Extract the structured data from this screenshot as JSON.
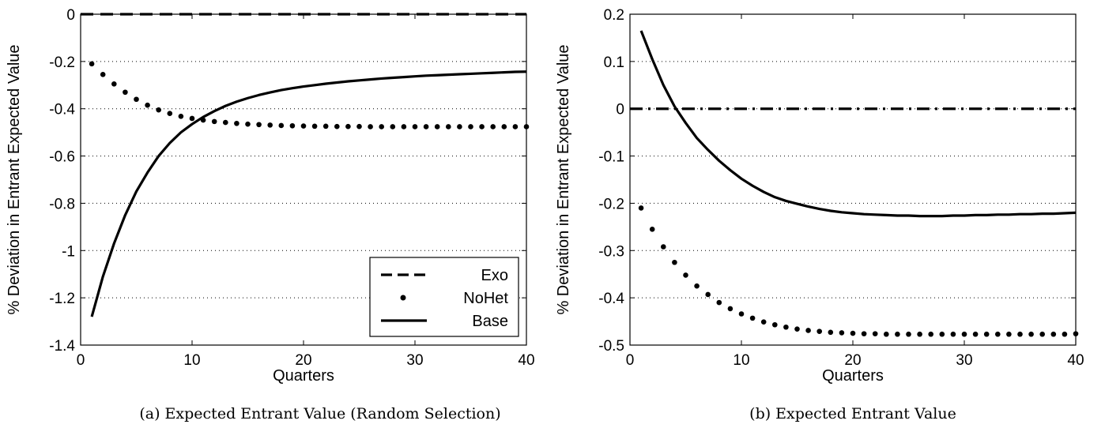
{
  "chart_data": [
    {
      "type": "line",
      "caption": "(a) Expected Entrant Value (Random Selection)",
      "xlabel": "Quarters",
      "ylabel": "% Deviation in Entrant Expected Value",
      "xlim": [
        0,
        40
      ],
      "ylim": [
        -1.4,
        0
      ],
      "xticks": [
        "0",
        "10",
        "20",
        "30",
        "40"
      ],
      "yticks": [
        "0",
        "-0.2",
        "-0.4",
        "-0.6",
        "-0.8",
        "-1",
        "-1.2",
        "-1.4"
      ],
      "grid": "dotted horizontal",
      "legend": {
        "position": "bottom-right",
        "entries": [
          "Exo",
          "NoHet",
          "Base"
        ]
      },
      "x": [
        1,
        2,
        3,
        4,
        5,
        6,
        7,
        8,
        9,
        10,
        11,
        12,
        13,
        14,
        15,
        16,
        17,
        18,
        19,
        20,
        21,
        22,
        23,
        24,
        25,
        26,
        27,
        28,
        29,
        30,
        31,
        32,
        33,
        34,
        35,
        36,
        37,
        38,
        39,
        40
      ],
      "series": [
        {
          "name": "Exo",
          "style": "dashed",
          "values": [
            0,
            0,
            0,
            0,
            0,
            0,
            0,
            0,
            0,
            0,
            0,
            0,
            0,
            0,
            0,
            0,
            0,
            0,
            0,
            0,
            0,
            0,
            0,
            0,
            0,
            0,
            0,
            0,
            0,
            0,
            0,
            0,
            0,
            0,
            0,
            0,
            0,
            0,
            0,
            0
          ]
        },
        {
          "name": "NoHet",
          "style": "dotted",
          "values": [
            -0.21,
            -0.255,
            -0.295,
            -0.33,
            -0.36,
            -0.385,
            -0.405,
            -0.42,
            -0.432,
            -0.441,
            -0.448,
            -0.454,
            -0.458,
            -0.462,
            -0.465,
            -0.467,
            -0.469,
            -0.471,
            -0.472,
            -0.473,
            -0.474,
            -0.474,
            -0.475,
            -0.475,
            -0.475,
            -0.476,
            -0.476,
            -0.476,
            -0.476,
            -0.476,
            -0.476,
            -0.476,
            -0.476,
            -0.476,
            -0.476,
            -0.476,
            -0.476,
            -0.476,
            -0.476,
            -0.476
          ]
        },
        {
          "name": "Base",
          "style": "solid",
          "values": [
            -1.28,
            -1.11,
            -0.97,
            -0.85,
            -0.75,
            -0.67,
            -0.6,
            -0.545,
            -0.5,
            -0.465,
            -0.435,
            -0.41,
            -0.388,
            -0.37,
            -0.355,
            -0.342,
            -0.331,
            -0.321,
            -0.313,
            -0.306,
            -0.3,
            -0.294,
            -0.289,
            -0.284,
            -0.28,
            -0.276,
            -0.272,
            -0.269,
            -0.266,
            -0.263,
            -0.26,
            -0.258,
            -0.256,
            -0.254,
            -0.252,
            -0.25,
            -0.248,
            -0.246,
            -0.244,
            -0.243
          ]
        }
      ]
    },
    {
      "type": "line",
      "caption": "(b) Expected Entrant Value",
      "xlabel": "Quarters",
      "ylabel": "% Deviation in Entrant Expected Value",
      "xlim": [
        0,
        40
      ],
      "ylim": [
        -0.5,
        0.2
      ],
      "xticks": [
        "0",
        "10",
        "20",
        "30",
        "40"
      ],
      "yticks": [
        "0.2",
        "0.1",
        "0",
        "-0.1",
        "-0.2",
        "-0.3",
        "-0.4",
        "-0.5"
      ],
      "grid": "dotted horizontal",
      "x": [
        1,
        2,
        3,
        4,
        5,
        6,
        7,
        8,
        9,
        10,
        11,
        12,
        13,
        14,
        15,
        16,
        17,
        18,
        19,
        20,
        21,
        22,
        23,
        24,
        25,
        26,
        27,
        28,
        29,
        30,
        31,
        32,
        33,
        34,
        35,
        36,
        37,
        38,
        39,
        40
      ],
      "series": [
        {
          "name": "Exo",
          "style": "dash-dot",
          "values": [
            0,
            0,
            0,
            0,
            0,
            0,
            0,
            0,
            0,
            0,
            0,
            0,
            0,
            0,
            0,
            0,
            0,
            0,
            0,
            0,
            0,
            0,
            0,
            0,
            0,
            0,
            0,
            0,
            0,
            0,
            0,
            0,
            0,
            0,
            0,
            0,
            0,
            0,
            0,
            0
          ]
        },
        {
          "name": "NoHet",
          "style": "dotted",
          "values": [
            -0.21,
            -0.255,
            -0.292,
            -0.325,
            -0.352,
            -0.375,
            -0.393,
            -0.41,
            -0.423,
            -0.434,
            -0.443,
            -0.451,
            -0.457,
            -0.462,
            -0.466,
            -0.469,
            -0.471,
            -0.473,
            -0.474,
            -0.475,
            -0.476,
            -0.476,
            -0.477,
            -0.477,
            -0.477,
            -0.477,
            -0.477,
            -0.477,
            -0.477,
            -0.477,
            -0.477,
            -0.477,
            -0.477,
            -0.477,
            -0.477,
            -0.477,
            -0.477,
            -0.477,
            -0.477,
            -0.476
          ]
        },
        {
          "name": "Base",
          "style": "solid",
          "values": [
            0.165,
            0.105,
            0.05,
            0.005,
            -0.03,
            -0.062,
            -0.087,
            -0.11,
            -0.13,
            -0.148,
            -0.163,
            -0.176,
            -0.187,
            -0.195,
            -0.201,
            -0.207,
            -0.212,
            -0.216,
            -0.219,
            -0.221,
            -0.223,
            -0.224,
            -0.225,
            -0.226,
            -0.226,
            -0.227,
            -0.227,
            -0.227,
            -0.226,
            -0.226,
            -0.225,
            -0.225,
            -0.224,
            -0.224,
            -0.223,
            -0.223,
            -0.222,
            -0.222,
            -0.221,
            -0.22
          ]
        }
      ]
    }
  ]
}
